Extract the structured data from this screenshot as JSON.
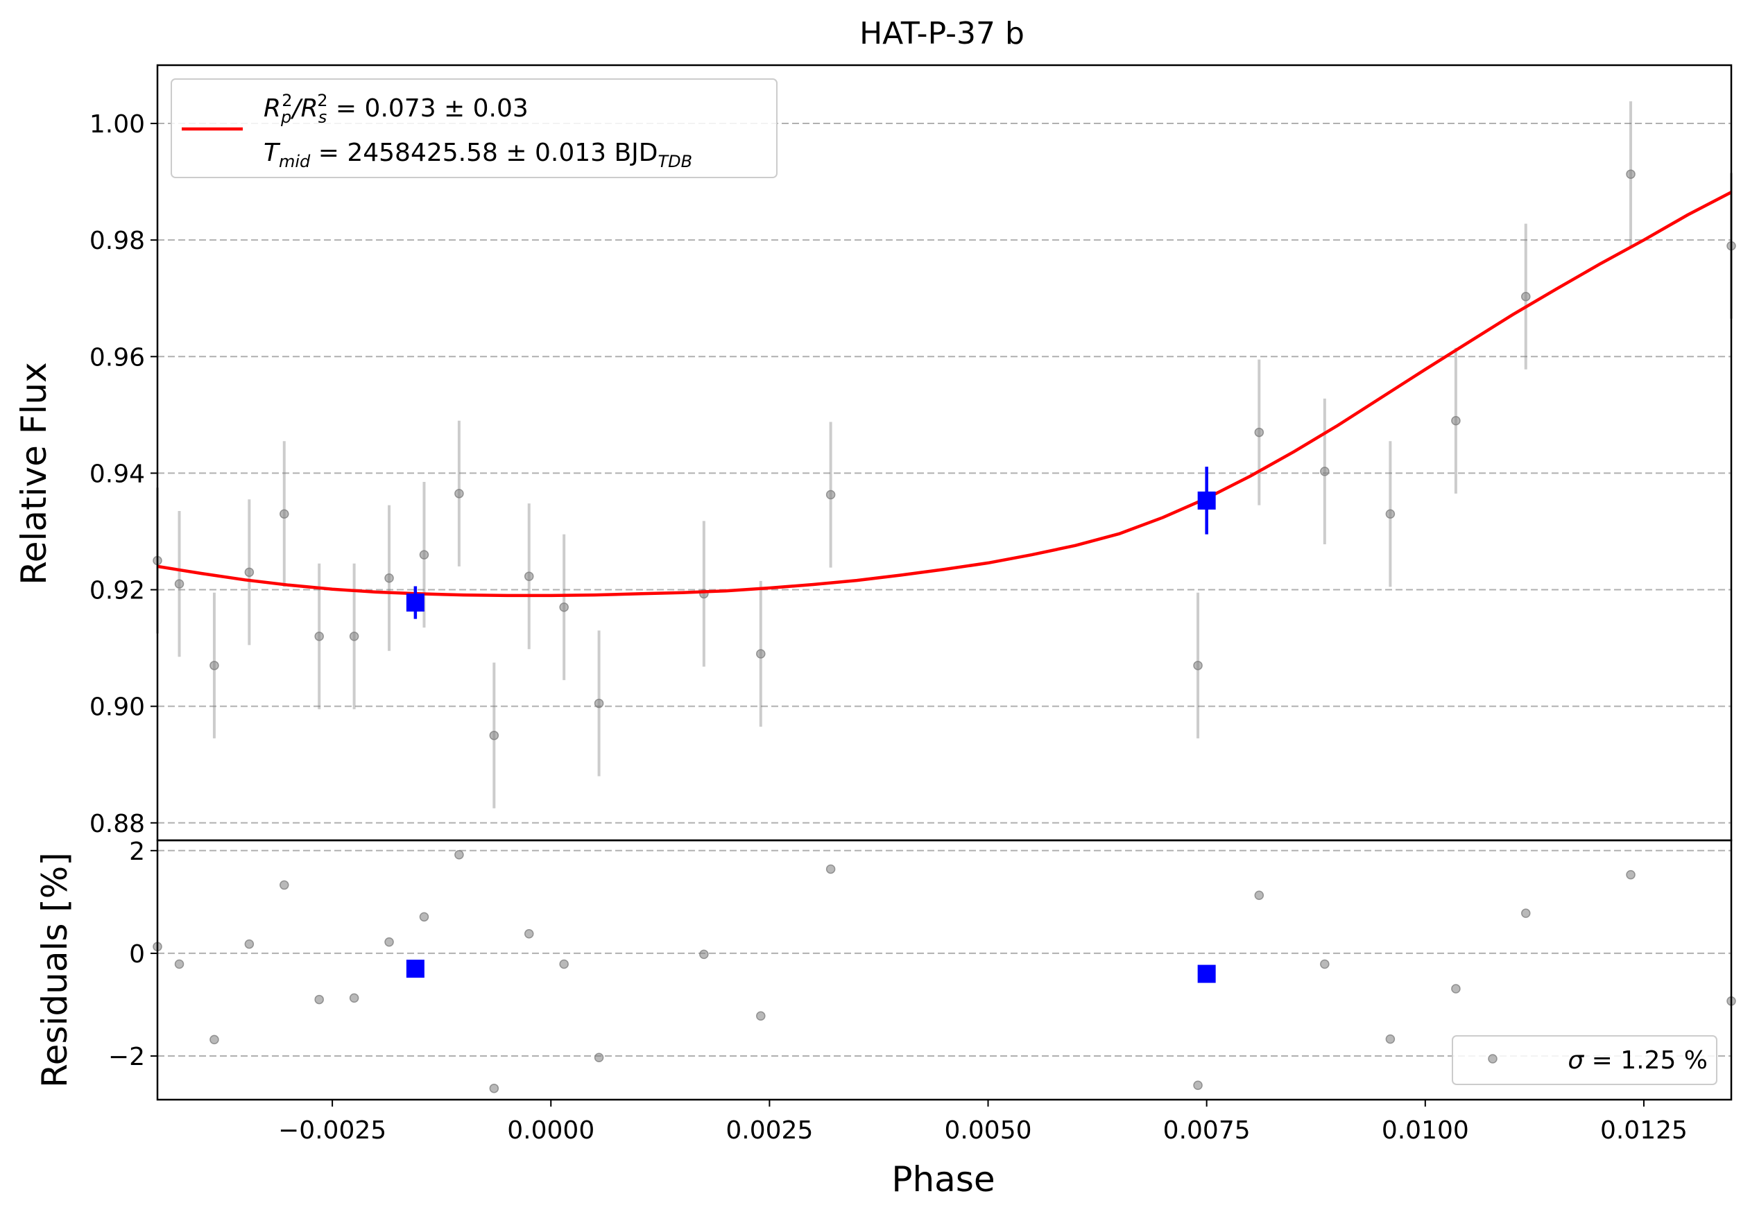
{
  "chart_data": [
    {
      "panel": "top",
      "type": "scatter",
      "title": "HAT-P-37 b",
      "xlabel": "",
      "ylabel": "Relative Flux",
      "xlim": [
        -0.0045,
        0.0135
      ],
      "ylim": [
        0.877,
        1.01
      ],
      "yticks": [
        0.88,
        0.9,
        0.92,
        0.94,
        0.96,
        0.98,
        1.0
      ],
      "ytick_labels": [
        "0.88",
        "0.90",
        "0.92",
        "0.94",
        "0.96",
        "0.98",
        "1.00"
      ],
      "grid": "y dashed",
      "legend": {
        "placement": "top-left",
        "line1": {
          "pre": "R",
          "sub1": "p",
          "sup1": "2",
          "mid": "/R",
          "sub2": "s",
          "sup2": "2",
          "post": " = 0.073 ± 0.03"
        },
        "line2": {
          "pre": "T",
          "sub1": "mid",
          "post": " = 2458425.58 ± 0.013 BJD",
          "sub2": "TDB"
        },
        "color": "#ff0000"
      },
      "series": [
        {
          "name": "data",
          "color": "#808080",
          "points": [
            [
              -0.0045,
              0.925,
              0.0125
            ],
            [
              -0.00425,
              0.921,
              0.0125
            ],
            [
              -0.00385,
              0.907,
              0.0125
            ],
            [
              -0.00345,
              0.923,
              0.0125
            ],
            [
              -0.00305,
              0.933,
              0.0125
            ],
            [
              -0.00265,
              0.912,
              0.0125
            ],
            [
              -0.00225,
              0.912,
              0.0125
            ],
            [
              -0.00185,
              0.922,
              0.0125
            ],
            [
              -0.00145,
              0.926,
              0.0125
            ],
            [
              -0.00105,
              0.9365,
              0.0125
            ],
            [
              -0.00065,
              0.895,
              0.0125
            ],
            [
              -0.00025,
              0.9223,
              0.0125
            ],
            [
              0.00015,
              0.917,
              0.0125
            ],
            [
              0.00055,
              0.9005,
              0.0125
            ],
            [
              0.00175,
              0.9193,
              0.0125
            ],
            [
              0.0024,
              0.909,
              0.0125
            ],
            [
              0.0032,
              0.9363,
              0.0125
            ],
            [
              0.0074,
              0.907,
              0.0125
            ],
            [
              0.0081,
              0.947,
              0.0125
            ],
            [
              0.00885,
              0.9403,
              0.0125
            ],
            [
              0.0096,
              0.933,
              0.0125
            ],
            [
              0.01035,
              0.949,
              0.0125
            ],
            [
              0.01115,
              0.9703,
              0.0125
            ],
            [
              0.01235,
              0.9913,
              0.0125
            ],
            [
              0.0135,
              0.979,
              0.0125
            ]
          ]
        },
        {
          "name": "binned",
          "color": "#0000ff",
          "points": [
            [
              -0.00155,
              0.9178,
              0.0028
            ],
            [
              0.0075,
              0.9353,
              0.0058
            ]
          ]
        },
        {
          "name": "model",
          "type": "line",
          "color": "#ff0000",
          "points": [
            [
              -0.0045,
              0.924
            ],
            [
              -0.004,
              0.9228
            ],
            [
              -0.0035,
              0.9217
            ],
            [
              -0.003,
              0.9208
            ],
            [
              -0.0025,
              0.9201
            ],
            [
              -0.002,
              0.9196
            ],
            [
              -0.0015,
              0.9193
            ],
            [
              -0.001,
              0.9191
            ],
            [
              -0.0005,
              0.919
            ],
            [
              0.0,
              0.919
            ],
            [
              0.0005,
              0.9191
            ],
            [
              0.001,
              0.9193
            ],
            [
              0.0015,
              0.9195
            ],
            [
              0.002,
              0.9198
            ],
            [
              0.0025,
              0.9203
            ],
            [
              0.003,
              0.9209
            ],
            [
              0.0035,
              0.9216
            ],
            [
              0.004,
              0.9225
            ],
            [
              0.0045,
              0.9235
            ],
            [
              0.005,
              0.9246
            ],
            [
              0.0055,
              0.926
            ],
            [
              0.006,
              0.9276
            ],
            [
              0.0065,
              0.9296
            ],
            [
              0.007,
              0.9324
            ],
            [
              0.0075,
              0.9357
            ],
            [
              0.008,
              0.9395
            ],
            [
              0.0085,
              0.9437
            ],
            [
              0.009,
              0.9482
            ],
            [
              0.0095,
              0.953
            ],
            [
              0.01,
              0.9578
            ],
            [
              0.0105,
              0.9625
            ],
            [
              0.011,
              0.9672
            ],
            [
              0.0115,
              0.9716
            ],
            [
              0.012,
              0.9759
            ],
            [
              0.0125,
              0.98
            ],
            [
              0.013,
              0.9843
            ],
            [
              0.0135,
              0.9882
            ]
          ]
        }
      ]
    },
    {
      "panel": "bottom",
      "type": "scatter",
      "xlabel": "Phase",
      "ylabel": "Residuals [%]",
      "xlim": [
        -0.0045,
        0.0135
      ],
      "ylim": [
        -2.85,
        2.2
      ],
      "xticks": [
        -0.0025,
        0.0,
        0.0025,
        0.005,
        0.0075,
        0.01,
        0.0125
      ],
      "xtick_labels": [
        "−0.0025",
        "0.0000",
        "0.0025",
        "0.0050",
        "0.0075",
        "0.0100",
        "0.0125"
      ],
      "yticks": [
        -2,
        0,
        2
      ],
      "ytick_labels": [
        "−2",
        "0",
        "2"
      ],
      "grid": "y dashed",
      "legend": {
        "placement": "bottom-right",
        "symbol": "σ",
        "text": " = 1.25 %"
      },
      "series": [
        {
          "name": "residuals",
          "color": "#808080",
          "points": [
            [
              -0.0045,
              0.13
            ],
            [
              -0.00425,
              -0.21
            ],
            [
              -0.00385,
              -1.68
            ],
            [
              -0.00345,
              0.18
            ],
            [
              -0.00305,
              1.33
            ],
            [
              -0.00265,
              -0.9
            ],
            [
              -0.00225,
              -0.87
            ],
            [
              -0.00185,
              0.22
            ],
            [
              -0.00145,
              0.71
            ],
            [
              -0.00105,
              1.92
            ],
            [
              -0.00065,
              -2.63
            ],
            [
              -0.00025,
              0.38
            ],
            [
              0.00015,
              -0.21
            ],
            [
              0.00055,
              -2.03
            ],
            [
              0.00175,
              -0.02
            ],
            [
              0.0024,
              -1.22
            ],
            [
              0.0032,
              1.64
            ],
            [
              0.0074,
              -2.57
            ],
            [
              0.0081,
              1.13
            ],
            [
              0.00885,
              -0.21
            ],
            [
              0.0096,
              -1.67
            ],
            [
              0.01035,
              -0.69
            ],
            [
              0.01115,
              0.78
            ],
            [
              0.01235,
              1.53
            ],
            [
              0.0135,
              -0.93
            ]
          ]
        },
        {
          "name": "binned",
          "color": "#0000ff",
          "points": [
            [
              -0.00155,
              -0.3
            ],
            [
              0.0075,
              -0.4
            ]
          ]
        }
      ]
    }
  ]
}
